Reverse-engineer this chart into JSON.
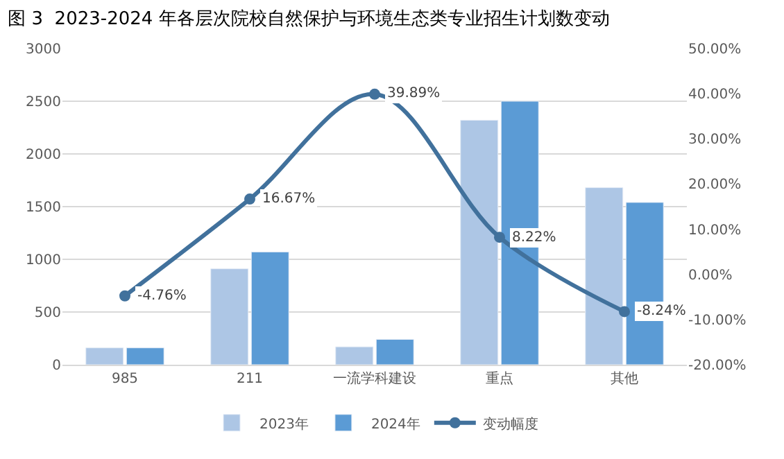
{
  "chart_data": {
    "type": "bar",
    "title": "图 3  2023-2024 年各层次院校自然保护与环境生态类专业招生计划数变动",
    "categories": [
      "985",
      "211",
      "一流学科建设",
      "重点",
      "其他"
    ],
    "series": [
      {
        "name": "2023年",
        "color": "#adc6e5",
        "values": [
          160,
          910,
          170,
          2320,
          1680
        ]
      },
      {
        "name": "2024年",
        "color": "#5b9bd5",
        "values": [
          160,
          1070,
          240,
          2500,
          1540
        ]
      },
      {
        "name": "变动幅度",
        "type": "line",
        "axis": "y2",
        "color": "#41719c",
        "values": [
          -4.76,
          16.67,
          39.89,
          8.22,
          -8.24
        ],
        "value_labels": [
          "-4.76%",
          "16.67%",
          "39.89%",
          "8.22%",
          "-8.24%"
        ],
        "marker": "circle",
        "line_style": "solid"
      }
    ],
    "ylim": [
      0,
      3000
    ],
    "yticks": [
      0,
      500,
      1000,
      1500,
      2000,
      2500,
      3000
    ],
    "y2lim": [
      -20,
      50
    ],
    "y2ticks": [
      {
        "value": -20,
        "label": "-20.00%"
      },
      {
        "value": -10,
        "label": "-10.00%"
      },
      {
        "value": 0,
        "label": "0.00%"
      },
      {
        "value": 10,
        "label": "10.00%"
      },
      {
        "value": 20,
        "label": "20.00%"
      },
      {
        "value": 30,
        "label": "30.00%"
      },
      {
        "value": 40,
        "label": "40.00%"
      },
      {
        "value": 50,
        "label": "50.00%"
      }
    ],
    "grid": "y",
    "legend": "bottom"
  }
}
